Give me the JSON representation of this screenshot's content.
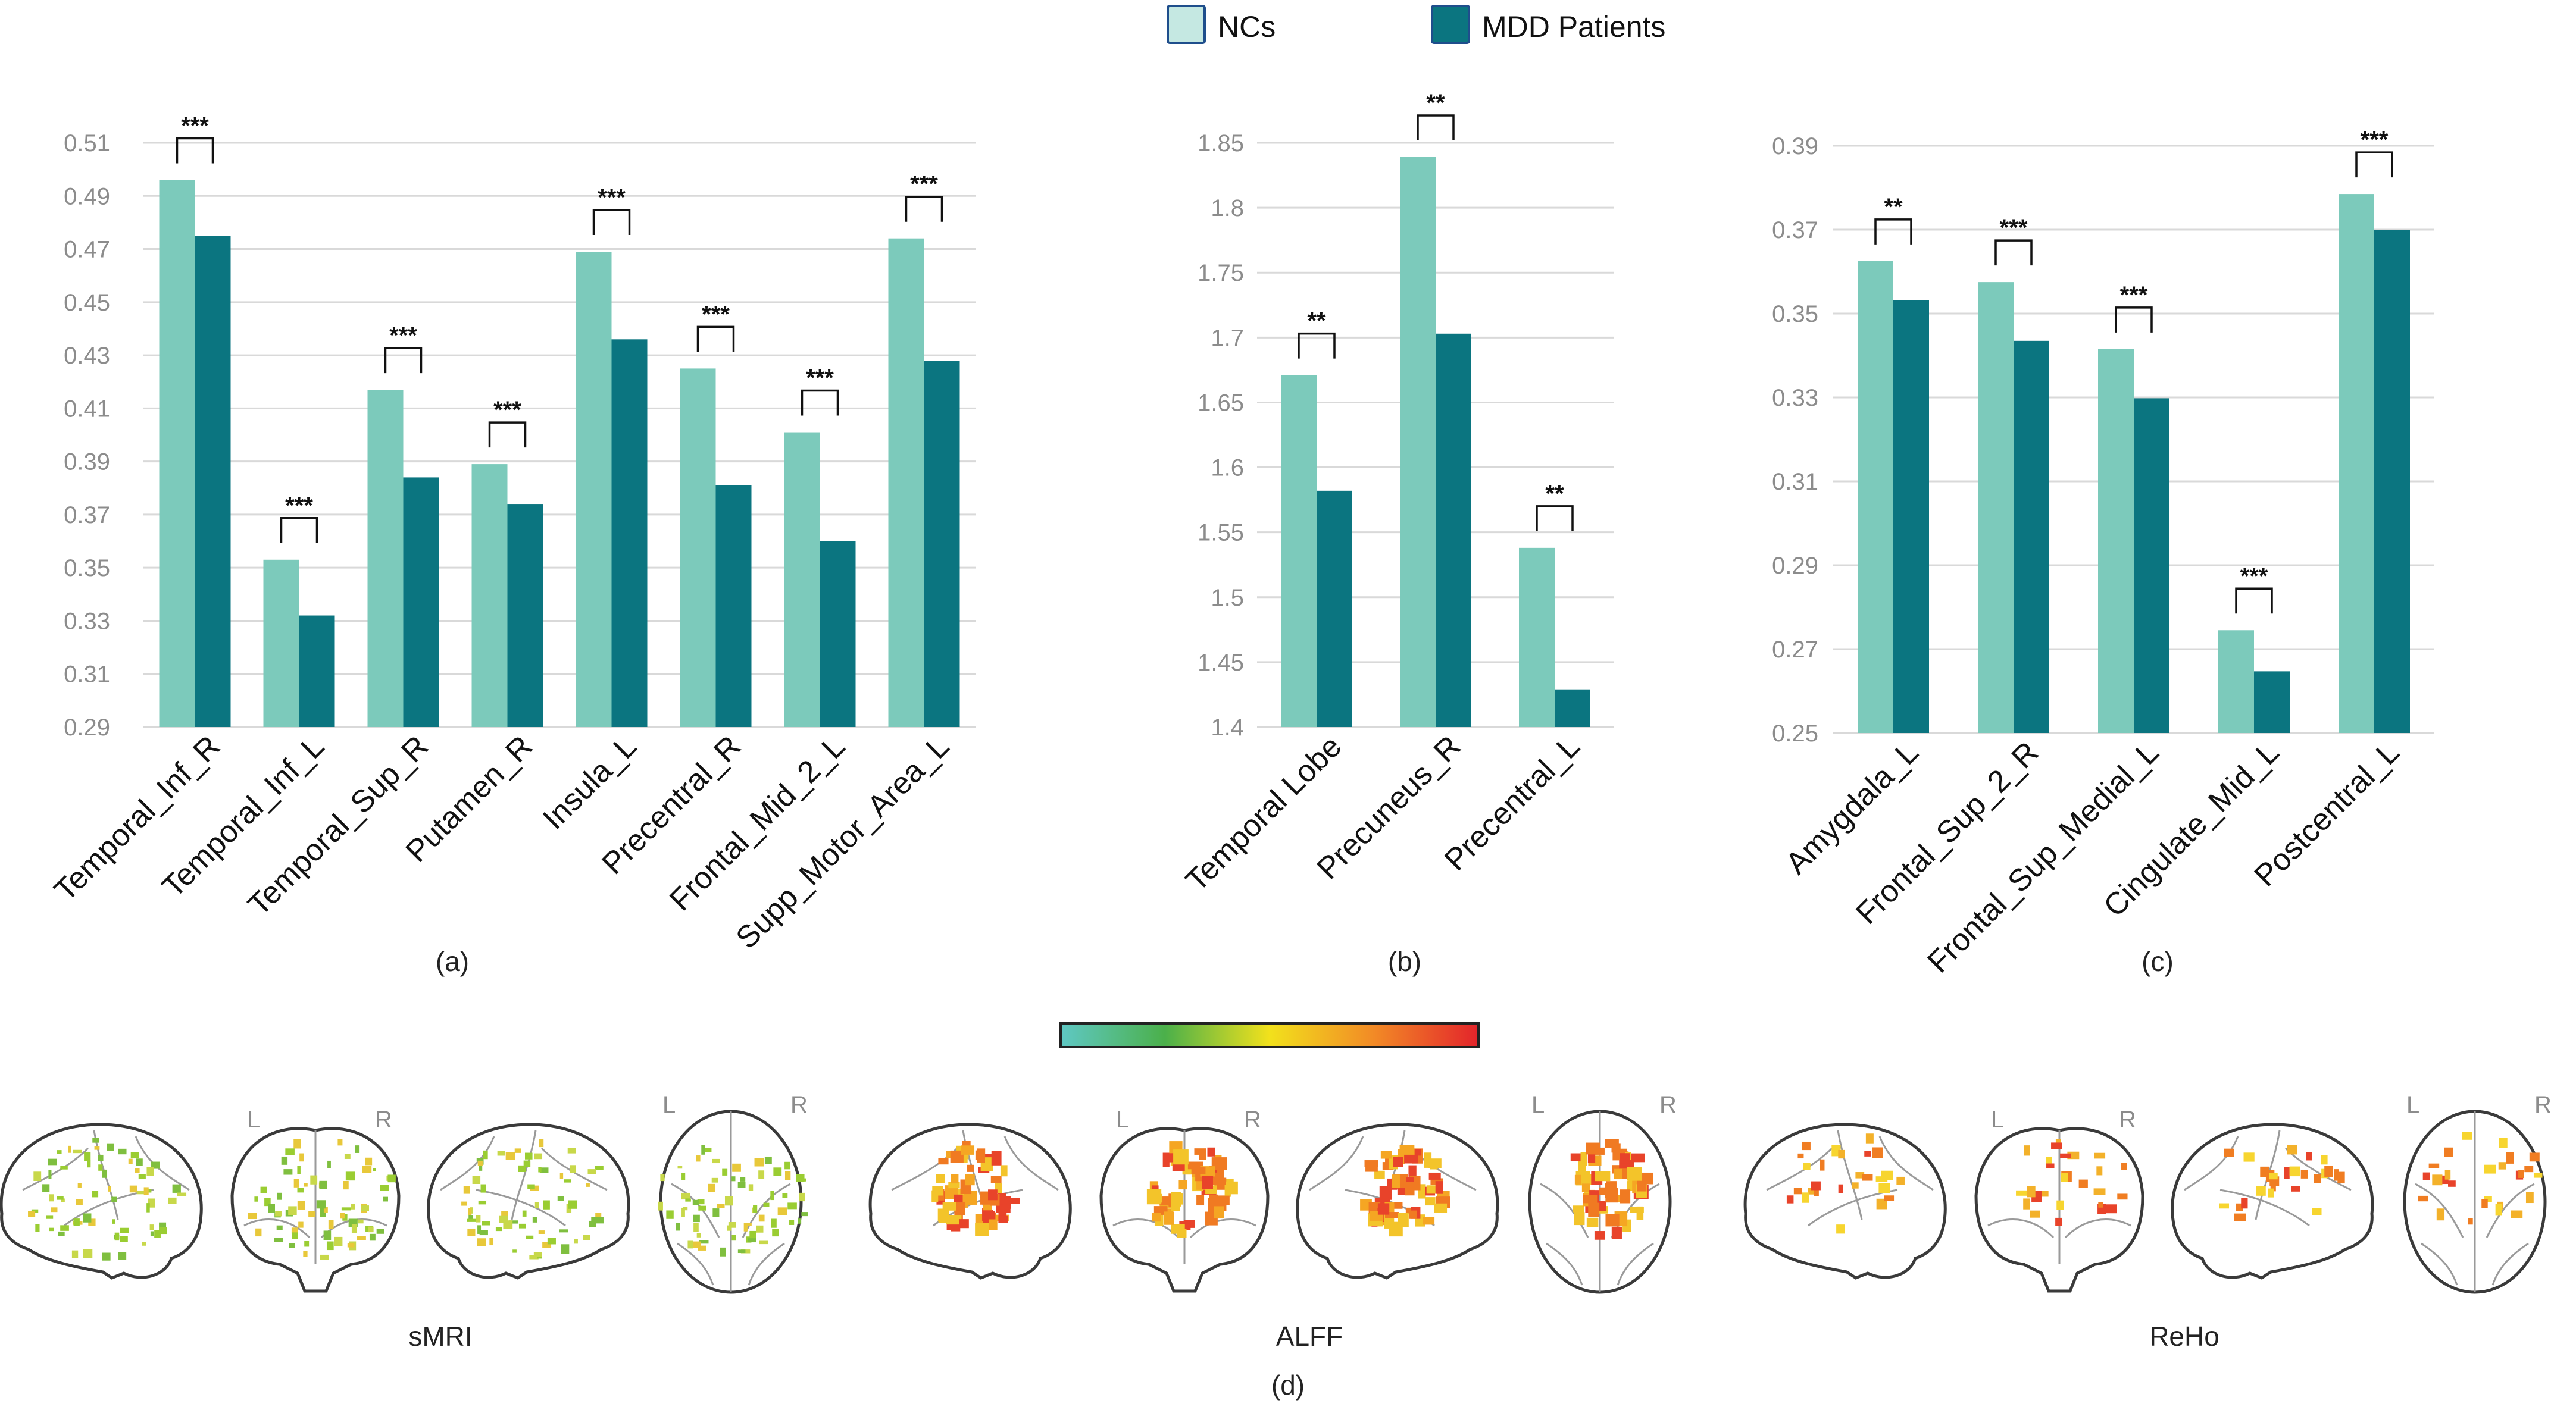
{
  "legend": {
    "nc_label": "NCs",
    "mdd_label": "MDD Patients"
  },
  "colors": {
    "nc": "#7ccabb",
    "mdd": "#0b7580",
    "nc_legend_fill": "#c5e8e2",
    "legend_border": "#1f4e8c"
  },
  "chart_data": [
    {
      "type": "bar",
      "panel_label": "(a)",
      "categories": [
        "Temporal_Inf_R",
        "Temporal_Inf_L",
        "Temporal_Sup_R",
        "Putamen_R",
        "Insula_L",
        "Precentral_R",
        "Frontal_Mid_2_L",
        "Supp_Motor_Area_L"
      ],
      "series": [
        {
          "name": "NCs",
          "values": [
            0.496,
            0.353,
            0.417,
            0.389,
            0.469,
            0.425,
            0.401,
            0.474
          ]
        },
        {
          "name": "MDD Patients",
          "values": [
            0.475,
            0.332,
            0.384,
            0.374,
            0.436,
            0.381,
            0.36,
            0.428
          ]
        }
      ],
      "significance": [
        "***",
        "***",
        "***",
        "***",
        "***",
        "***",
        "***",
        "***"
      ],
      "ylim": [
        0.29,
        0.51
      ],
      "yticks": [
        "0.51",
        "0.49",
        "0.47",
        "0.45",
        "0.43",
        "0.41",
        "0.39",
        "0.37",
        "0.35",
        "0.33",
        "0.31",
        "0.29"
      ],
      "grid": true
    },
    {
      "type": "bar",
      "panel_label": "(b)",
      "categories": [
        "Temporal Lobe",
        "Precuneus_R",
        "Precentral_L"
      ],
      "series": [
        {
          "name": "NCs",
          "values": [
            1.671,
            1.839,
            1.538
          ]
        },
        {
          "name": "MDD Patients",
          "values": [
            1.582,
            1.703,
            1.429
          ]
        }
      ],
      "significance": [
        "**",
        "**",
        "**"
      ],
      "ylim": [
        1.4,
        1.85
      ],
      "yticks": [
        "1.85",
        "1.8",
        "1.75",
        "1.7",
        "1.65",
        "1.6",
        "1.55",
        "1.5",
        "1.45",
        "1.4"
      ],
      "grid": true
    },
    {
      "type": "bar",
      "panel_label": "(c)",
      "categories": [
        "Amygdala_L",
        "Frontal_Sup_2_R",
        "Frontal_Sup_Medial_L",
        "Cingulate_Mid_L",
        "Postcentral_L"
      ],
      "series": [
        {
          "name": "NCs",
          "values": [
            0.3625,
            0.3575,
            0.3415,
            0.2745,
            0.3785
          ]
        },
        {
          "name": "MDD Patients",
          "values": [
            0.3532,
            0.3435,
            0.3298,
            0.2647,
            0.3699
          ]
        }
      ],
      "significance": [
        "**",
        "***",
        "***",
        "***",
        "***"
      ],
      "ylim": [
        0.25,
        0.39
      ],
      "yticks": [
        "0.39",
        "0.37",
        "0.35",
        "0.33",
        "0.31",
        "0.29",
        "0.27",
        "0.25"
      ],
      "grid": true
    }
  ],
  "brain_panel": {
    "panel_label": "(d)",
    "colorbar_stops": [
      "#5fc8c4",
      "#4bb04a",
      "#f2e11c",
      "#f28a26",
      "#e3242b"
    ],
    "orientation_left": "L",
    "orientation_right": "R",
    "groups": [
      {
        "label": "sMRI",
        "palette": [
          "#9acd32",
          "#7fbf3f",
          "#c8d84a",
          "#e8c83a"
        ]
      },
      {
        "label": "ALFF",
        "palette": [
          "#f5a623",
          "#f07a22",
          "#e8432a",
          "#f3c42a"
        ]
      },
      {
        "label": "ReHo",
        "palette": [
          "#f3b12a",
          "#f07d22",
          "#e8432a",
          "#f7d52f"
        ]
      }
    ]
  }
}
